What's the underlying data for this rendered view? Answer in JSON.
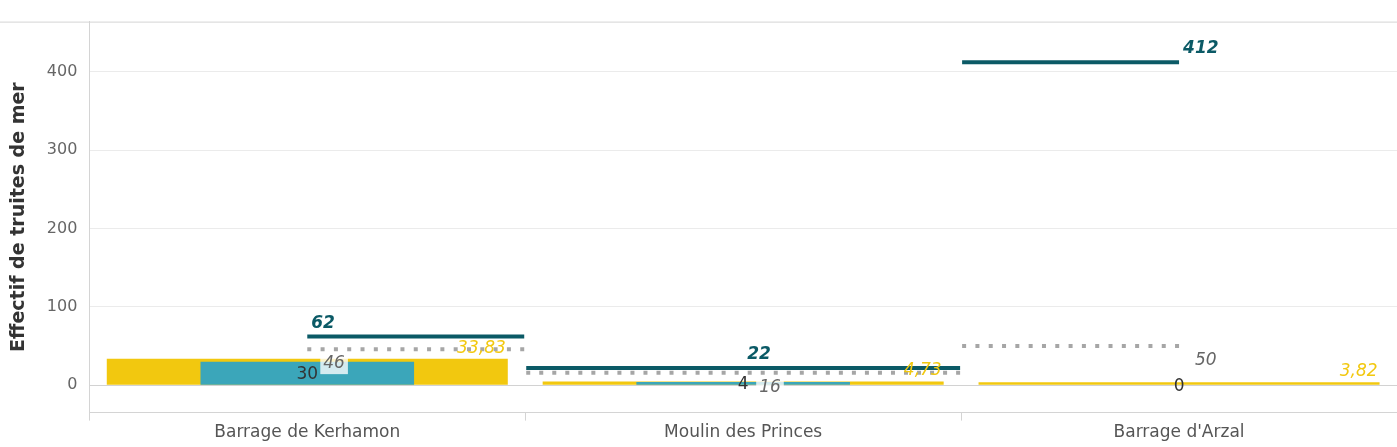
{
  "chart_data": {
    "type": "bar",
    "categories": [
      "Barrage de Kerhamon",
      "Moulin des Princes",
      "Barrage d'Arzal"
    ],
    "ylabel": "Effectif de truites de mer",
    "ylim": [
      -35,
      464
    ],
    "yticks": [
      0,
      100,
      200,
      300,
      400
    ],
    "grid": "y",
    "series": [
      {
        "color": "#f2c80f",
        "values": [
          33.83,
          4.73,
          3.82
        ],
        "value_labels": [
          "33,83",
          "4,73",
          "3,82"
        ]
      },
      {
        "color": "#3ba6ba",
        "values": [
          30,
          4,
          0
        ],
        "value_labels": [
          "30",
          "4",
          "0"
        ]
      },
      {
        "type": "step",
        "color": "#0b5a66",
        "line_style": "solid",
        "values": [
          62,
          22,
          412
        ],
        "value_labels": [
          "62",
          "22",
          "412"
        ]
      },
      {
        "type": "step",
        "color": "#a6a6a6",
        "line_style": "dotted",
        "values": [
          46,
          16,
          50
        ],
        "value_labels": [
          "46",
          "16",
          "50"
        ]
      }
    ]
  }
}
